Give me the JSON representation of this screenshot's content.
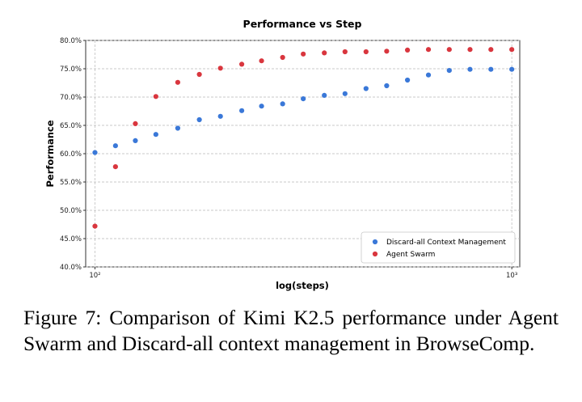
{
  "chart_data": {
    "type": "scatter",
    "title": "Performance vs Step",
    "xlabel": "log(steps)",
    "ylabel": "Performance",
    "x_scale": "log",
    "xlim": [
      95,
      1045
    ],
    "ylim": [
      40,
      80
    ],
    "x_ticks": [
      {
        "value": 100,
        "label": "10²"
      },
      {
        "value": 1000,
        "label": "10³"
      }
    ],
    "y_ticks": [
      {
        "value": 40,
        "label": "40.0%"
      },
      {
        "value": 45,
        "label": "45.0%"
      },
      {
        "value": 50,
        "label": "50.0%"
      },
      {
        "value": 55,
        "label": "55.0%"
      },
      {
        "value": 60,
        "label": "60.0%"
      },
      {
        "value": 65,
        "label": "65.0%"
      },
      {
        "value": 70,
        "label": "70.0%"
      },
      {
        "value": 75,
        "label": "75.0%"
      },
      {
        "value": 80,
        "label": "80.0%"
      }
    ],
    "grid": true,
    "legend_position": "bottom-right",
    "series": [
      {
        "name": "Discard-all Context Management",
        "color": "#3a78d8",
        "points": [
          [
            100,
            60.2
          ],
          [
            112,
            61.4
          ],
          [
            125,
            62.3
          ],
          [
            140,
            63.4
          ],
          [
            158,
            64.5
          ],
          [
            178,
            66.0
          ],
          [
            200,
            66.6
          ],
          [
            225,
            67.6
          ],
          [
            251,
            68.4
          ],
          [
            282,
            68.8
          ],
          [
            316,
            69.7
          ],
          [
            355,
            70.3
          ],
          [
            398,
            70.6
          ],
          [
            447,
            71.5
          ],
          [
            501,
            72.0
          ],
          [
            562,
            73.0
          ],
          [
            631,
            73.9
          ],
          [
            708,
            74.7
          ],
          [
            794,
            74.9
          ],
          [
            891,
            74.9
          ],
          [
            1000,
            74.9
          ]
        ]
      },
      {
        "name": "Agent Swarm",
        "color": "#d9363e",
        "points": [
          [
            100,
            47.2
          ],
          [
            112,
            57.7
          ],
          [
            125,
            65.3
          ],
          [
            140,
            70.1
          ],
          [
            158,
            72.6
          ],
          [
            178,
            74.0
          ],
          [
            200,
            75.1
          ],
          [
            225,
            75.8
          ],
          [
            251,
            76.4
          ],
          [
            282,
            77.0
          ],
          [
            316,
            77.6
          ],
          [
            355,
            77.8
          ],
          [
            398,
            78.0
          ],
          [
            447,
            78.0
          ],
          [
            501,
            78.1
          ],
          [
            562,
            78.3
          ],
          [
            631,
            78.4
          ],
          [
            708,
            78.4
          ],
          [
            794,
            78.4
          ],
          [
            891,
            78.4
          ],
          [
            1000,
            78.4
          ]
        ]
      }
    ]
  },
  "caption": "Figure 7: Comparison of Kimi K2.5 performance under Agent Swarm and Discard-all context management in BrowseComp."
}
